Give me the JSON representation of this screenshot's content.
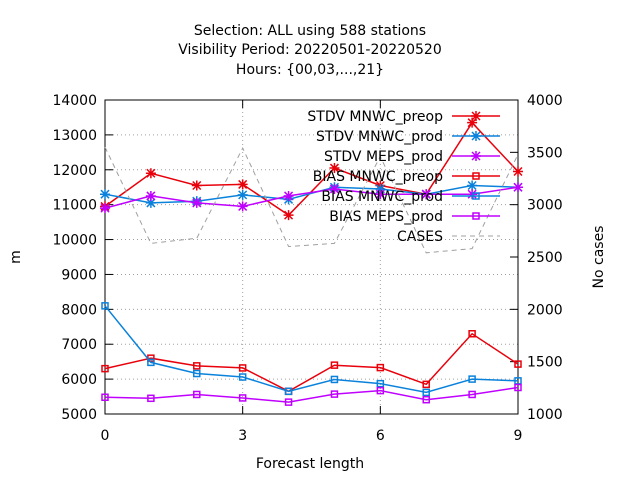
{
  "chart_data": {
    "type": "line",
    "title_lines": [
      "Selection: ALL using   588 stations",
      "Visibility   Period: 20220501-20220520",
      "Hours: {00,03,...,21}"
    ],
    "xlabel": "Forecast length",
    "ylabel": "m",
    "y2label": "No cases",
    "xlim": [
      0,
      9
    ],
    "ylim": [
      5000,
      14000
    ],
    "y2lim": [
      1000,
      4000
    ],
    "xticks": [
      0,
      3,
      6,
      9
    ],
    "yticks": [
      5000,
      6000,
      7000,
      8000,
      9000,
      10000,
      11000,
      12000,
      13000,
      14000
    ],
    "y2ticks": [
      1000,
      1500,
      2000,
      2500,
      3000,
      3500,
      4000
    ],
    "grid": true,
    "legend_position": "top-right",
    "x": [
      0,
      1,
      2,
      3,
      4,
      5,
      6,
      7,
      8,
      9
    ],
    "series": [
      {
        "name": "STDV MNWC_preop",
        "color": "#e8000b",
        "marker": "star",
        "axis": "y",
        "values": [
          10950,
          11900,
          11550,
          11580,
          10700,
          12050,
          11550,
          11300,
          13350,
          11950
        ]
      },
      {
        "name": "STDV MNWC_prod",
        "color": "#0a82dc",
        "marker": "star",
        "axis": "y",
        "values": [
          11300,
          11050,
          11100,
          11280,
          11150,
          11500,
          11450,
          11300,
          11550,
          11500
        ]
      },
      {
        "name": "STDV MEPS_prod",
        "color": "#c000ff",
        "marker": "star",
        "axis": "y",
        "values": [
          10900,
          11250,
          11050,
          10950,
          11250,
          11450,
          11300,
          11300,
          11300,
          11500
        ]
      },
      {
        "name": "BIAS MNWC_preop",
        "color": "#e8000b",
        "marker": "square",
        "axis": "y",
        "values": [
          6300,
          6600,
          6380,
          6320,
          5650,
          6400,
          6330,
          5850,
          7300,
          6430
        ]
      },
      {
        "name": "BIAS MNWC_prod",
        "color": "#0a82dc",
        "marker": "square",
        "axis": "y",
        "values": [
          8100,
          6480,
          6160,
          6060,
          5650,
          5990,
          5870,
          5620,
          6000,
          5950
        ]
      },
      {
        "name": "BIAS MEPS_prod",
        "color": "#c000ff",
        "marker": "square",
        "axis": "y",
        "values": [
          5480,
          5450,
          5560,
          5460,
          5340,
          5570,
          5670,
          5410,
          5560,
          5760
        ]
      },
      {
        "name": "CASES",
        "color": "#a0a0a0",
        "marker": "none",
        "dashed": true,
        "axis": "y2",
        "values": [
          3550,
          2630,
          2680,
          3540,
          2600,
          2630,
          3460,
          2540,
          2580,
          3480
        ]
      }
    ]
  }
}
